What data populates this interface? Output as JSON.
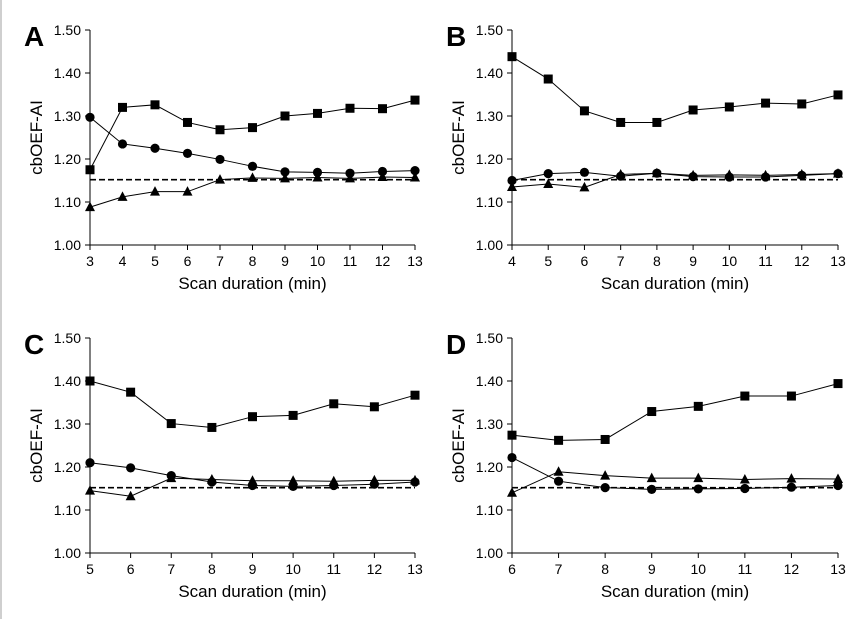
{
  "chart_data": [
    {
      "type": "line",
      "panel_label": "A",
      "xlabel": "Scan duration (min)",
      "ylabel": "cbOEF-AI",
      "xlim": [
        3,
        13
      ],
      "ylim": [
        1.0,
        1.5
      ],
      "x_ticks": [
        3,
        4,
        5,
        6,
        7,
        8,
        9,
        10,
        11,
        12,
        13
      ],
      "y_ticks": [
        "1.00",
        "1.10",
        "1.20",
        "1.30",
        "1.40",
        "1.50"
      ],
      "reference_line": 1.152,
      "series": [
        {
          "marker": "square",
          "x": [
            3,
            4,
            5,
            6,
            7,
            8,
            9,
            10,
            11,
            12,
            13
          ],
          "values": [
            1.175,
            1.32,
            1.326,
            1.285,
            1.268,
            1.273,
            1.3,
            1.306,
            1.318,
            1.317,
            1.337
          ]
        },
        {
          "marker": "circle",
          "x": [
            3,
            4,
            5,
            6,
            7,
            8,
            9,
            10,
            11,
            12,
            13
          ],
          "values": [
            1.297,
            1.235,
            1.225,
            1.213,
            1.199,
            1.183,
            1.17,
            1.169,
            1.167,
            1.171,
            1.173
          ]
        },
        {
          "marker": "triangle",
          "x": [
            3,
            4,
            5,
            6,
            7,
            8,
            9,
            10,
            11,
            12,
            13
          ],
          "values": [
            1.088,
            1.112,
            1.124,
            1.124,
            1.152,
            1.156,
            1.155,
            1.157,
            1.155,
            1.158,
            1.157
          ]
        }
      ]
    },
    {
      "type": "line",
      "panel_label": "B",
      "xlabel": "Scan duration (min)",
      "ylabel": "cbOEF-AI",
      "xlim": [
        4,
        13
      ],
      "ylim": [
        1.0,
        1.5
      ],
      "x_ticks": [
        4,
        5,
        6,
        7,
        8,
        9,
        10,
        11,
        12,
        13
      ],
      "y_ticks": [
        "1.00",
        "1.10",
        "1.20",
        "1.30",
        "1.40",
        "1.50"
      ],
      "reference_line": 1.152,
      "series": [
        {
          "marker": "square",
          "x": [
            4,
            5,
            6,
            7,
            8,
            9,
            10,
            11,
            12,
            13
          ],
          "values": [
            1.438,
            1.386,
            1.312,
            1.285,
            1.285,
            1.314,
            1.321,
            1.33,
            1.328,
            1.349
          ]
        },
        {
          "marker": "circle",
          "x": [
            4,
            5,
            6,
            7,
            8,
            9,
            10,
            11,
            12,
            13
          ],
          "values": [
            1.15,
            1.166,
            1.169,
            1.16,
            1.167,
            1.159,
            1.158,
            1.158,
            1.162,
            1.166
          ]
        },
        {
          "marker": "triangle",
          "x": [
            4,
            5,
            6,
            7,
            8,
            9,
            10,
            11,
            12,
            13
          ],
          "values": [
            1.135,
            1.142,
            1.134,
            1.164,
            1.167,
            1.162,
            1.163,
            1.162,
            1.164,
            1.166
          ]
        }
      ]
    },
    {
      "type": "line",
      "panel_label": "C",
      "xlabel": "Scan duration (min)",
      "ylabel": "cbOEF-AI",
      "xlim": [
        5,
        13
      ],
      "ylim": [
        1.0,
        1.5
      ],
      "x_ticks": [
        5,
        6,
        7,
        8,
        9,
        10,
        11,
        12,
        13
      ],
      "y_ticks": [
        "1.00",
        "1.10",
        "1.20",
        "1.30",
        "1.40",
        "1.50"
      ],
      "reference_line": 1.152,
      "series": [
        {
          "marker": "square",
          "x": [
            5,
            6,
            7,
            8,
            9,
            10,
            11,
            12,
            13
          ],
          "values": [
            1.4,
            1.374,
            1.301,
            1.292,
            1.317,
            1.32,
            1.347,
            1.34,
            1.367
          ]
        },
        {
          "marker": "circle",
          "x": [
            5,
            6,
            7,
            8,
            9,
            10,
            11,
            12,
            13
          ],
          "values": [
            1.21,
            1.198,
            1.18,
            1.165,
            1.157,
            1.155,
            1.157,
            1.16,
            1.165
          ]
        },
        {
          "marker": "triangle",
          "x": [
            5,
            6,
            7,
            8,
            9,
            10,
            11,
            12,
            13
          ],
          "values": [
            1.145,
            1.132,
            1.174,
            1.171,
            1.168,
            1.168,
            1.167,
            1.169,
            1.169
          ]
        }
      ]
    },
    {
      "type": "line",
      "panel_label": "D",
      "xlabel": "Scan duration (min)",
      "ylabel": "cbOEF-AI",
      "xlim": [
        6,
        13
      ],
      "ylim": [
        1.0,
        1.5
      ],
      "x_ticks": [
        6,
        7,
        8,
        9,
        10,
        11,
        12,
        13
      ],
      "y_ticks": [
        "1.00",
        "1.10",
        "1.20",
        "1.30",
        "1.40",
        "1.50"
      ],
      "reference_line": 1.152,
      "series": [
        {
          "marker": "square",
          "x": [
            6,
            7,
            8,
            9,
            10,
            11,
            12,
            13
          ],
          "values": [
            1.274,
            1.262,
            1.264,
            1.329,
            1.341,
            1.365,
            1.365,
            1.394
          ]
        },
        {
          "marker": "circle",
          "x": [
            6,
            7,
            8,
            9,
            10,
            11,
            12,
            13
          ],
          "values": [
            1.222,
            1.167,
            1.152,
            1.148,
            1.149,
            1.15,
            1.153,
            1.157
          ]
        },
        {
          "marker": "triangle",
          "x": [
            6,
            7,
            8,
            9,
            10,
            11,
            12,
            13
          ],
          "values": [
            1.14,
            1.189,
            1.18,
            1.174,
            1.174,
            1.171,
            1.173,
            1.172
          ]
        }
      ]
    }
  ]
}
